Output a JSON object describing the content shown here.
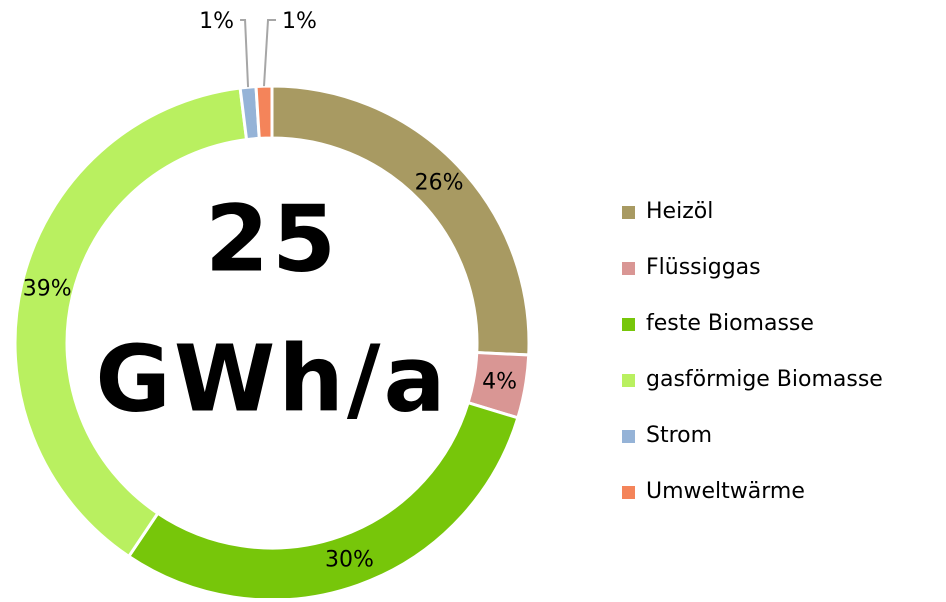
{
  "chart_data": {
    "type": "donut",
    "annotations": [
      "25",
      "GWh/a"
    ],
    "categories": [
      "Heizöl",
      "Flüssiggas",
      "feste Biomasse",
      "gasförmige Biomasse",
      "Strom",
      "Umweltwärme"
    ],
    "values": [
      26,
      4,
      30,
      39,
      1,
      1
    ],
    "value_labels": [
      "26%",
      "4%",
      "30%",
      "39%",
      "1%",
      "1%"
    ],
    "colors": [
      "#a89a62",
      "#d99694",
      "#77c60a",
      "#b9f060",
      "#95b3d7",
      "#f4845a"
    ],
    "legend": "right"
  }
}
